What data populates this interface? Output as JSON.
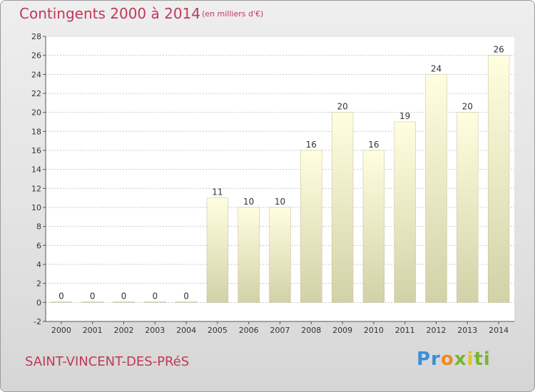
{
  "header": {
    "title": "Contingents 2000 à 2014",
    "subtitle": "(en milliers d'€)"
  },
  "footer": {
    "commune": "SAINT-VINCENT-DES-PRéS",
    "logo": [
      "Pr",
      "o",
      "x",
      "i",
      "ti"
    ]
  },
  "colors": {
    "title": "#c0385a",
    "bar_top": "#ffffe0",
    "bar_bottom": "#d2d2a8",
    "grid": "#c8c8c8"
  },
  "chart_data": {
    "type": "bar",
    "title": "Contingents 2000 à 2014",
    "subtitle": "(en milliers d'€)",
    "categories": [
      "2000",
      "2001",
      "2002",
      "2003",
      "2004",
      "2005",
      "2006",
      "2007",
      "2008",
      "2009",
      "2010",
      "2011",
      "2012",
      "2013",
      "2014"
    ],
    "values": [
      0,
      0,
      0,
      0,
      0,
      11,
      10,
      10,
      16,
      20,
      16,
      19,
      24,
      20,
      26
    ],
    "ylim": [
      -2,
      28
    ],
    "yticks": [
      -2,
      0,
      2,
      4,
      6,
      8,
      10,
      12,
      14,
      16,
      18,
      20,
      22,
      24,
      26,
      28
    ],
    "grid": true,
    "data_labels": true,
    "xlabel": "",
    "ylabel": ""
  }
}
